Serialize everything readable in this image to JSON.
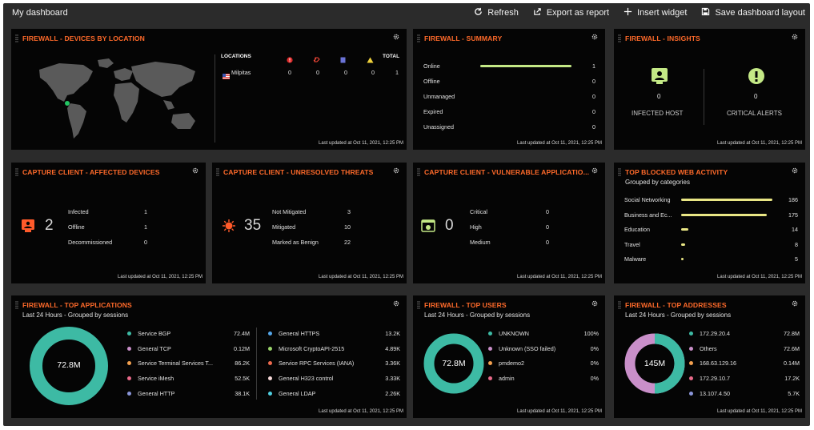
{
  "page": {
    "title": "My dashboard"
  },
  "toolbar": {
    "refresh": "Refresh",
    "export": "Export as report",
    "insert": "Insert widget",
    "save": "Save dashboard layout"
  },
  "updated": "Last updated at Oct 11, 2021, 12:25 PM",
  "widgets": {
    "devices_by_location": {
      "title": "FIREWALL - DEVICES BY LOCATION",
      "columns": [
        "LOCATIONS",
        "TOTAL"
      ],
      "rows": [
        {
          "location": "Milpitas",
          "v1": "0",
          "v2": "0",
          "v3": "0",
          "v4": "0",
          "total": "1"
        }
      ]
    },
    "summary": {
      "title": "FIREWALL - SUMMARY",
      "rows": [
        {
          "label": "Online",
          "value": "1",
          "fraction": 1
        },
        {
          "label": "Offline",
          "value": "0",
          "fraction": 0
        },
        {
          "label": "Unmanaged",
          "value": "0",
          "fraction": 0
        },
        {
          "label": "Expired",
          "value": "0",
          "fraction": 0
        },
        {
          "label": "Unassigned",
          "value": "0",
          "fraction": 0
        }
      ]
    },
    "insights": {
      "title": "FIREWALL - INSIGHTS",
      "infected_value": "0",
      "infected_label": "INFECTED HOST",
      "alerts_value": "0",
      "alerts_label": "CRITICAL ALERTS"
    },
    "affected_devices": {
      "title": "CAPTURE CLIENT - AFFECTED DEVICES",
      "big": "2",
      "rows": [
        {
          "label": "Infected",
          "value": "1"
        },
        {
          "label": "Offline",
          "value": "1"
        },
        {
          "label": "Decommissioned",
          "value": "0"
        }
      ]
    },
    "unresolved_threats": {
      "title": "CAPTURE CLIENT - UNRESOLVED THREATS",
      "big": "35",
      "rows": [
        {
          "label": "Not Mitigated",
          "value": "3"
        },
        {
          "label": "Mitigated",
          "value": "10"
        },
        {
          "label": "Marked as Benign",
          "value": "22"
        }
      ]
    },
    "vulnerable_apps": {
      "title": "CAPTURE CLIENT - VULNERABLE APPLICATIO...",
      "big": "0",
      "rows": [
        {
          "label": "Critical",
          "value": "0"
        },
        {
          "label": "High",
          "value": "0"
        },
        {
          "label": "Medium",
          "value": "0"
        }
      ]
    },
    "blocked_web": {
      "title": "TOP BLOCKED WEB ACTIVITY",
      "subtitle": "Grouped by categories",
      "rows": [
        {
          "label": "Social Networking",
          "value": "186",
          "n": 186
        },
        {
          "label": "Business and Ec...",
          "value": "175",
          "n": 175
        },
        {
          "label": "Education",
          "value": "14",
          "n": 14
        },
        {
          "label": "Travel",
          "value": "8",
          "n": 8
        },
        {
          "label": "Malware",
          "value": "5",
          "n": 5
        }
      ]
    },
    "top_apps": {
      "title": "FIREWALL - TOP APPLICATIONS",
      "subtitle": "Last 24 Hours - Grouped by sessions",
      "center": "72.8M",
      "left": [
        {
          "label": "Service BGP",
          "value": "72.4M",
          "color": "#3dbaa4"
        },
        {
          "label": "General TCP",
          "value": "0.12M",
          "color": "#c98fc9"
        },
        {
          "label": "Service Terminal Services T...",
          "value": "86.2K",
          "color": "#f3a04f"
        },
        {
          "label": "Service iMesh",
          "value": "52.5K",
          "color": "#ea6a8a"
        },
        {
          "label": "General HTTP",
          "value": "38.1K",
          "color": "#8a95d9"
        }
      ],
      "right": [
        {
          "label": "General HTTPS",
          "value": "13.2K",
          "color": "#54a6e8"
        },
        {
          "label": "Microsoft CryptoAPI-2515",
          "value": "4.89K",
          "color": "#9ad46b"
        },
        {
          "label": "Service RPC Services (IANA)",
          "value": "3.36K",
          "color": "#ee6a4e"
        },
        {
          "label": "General H323 control",
          "value": "3.33K",
          "color": "#f7d9d9"
        },
        {
          "label": "General LDAP",
          "value": "2.26K",
          "color": "#4fcfe0"
        }
      ]
    },
    "top_users": {
      "title": "FIREWALL - TOP USERS",
      "subtitle": "Last 24 Hours - Grouped by sessions",
      "center": "72.8M",
      "rows": [
        {
          "label": "UNKNOWN",
          "value": "100%",
          "color": "#3dbaa4"
        },
        {
          "label": "Unknown (SSO failed)",
          "value": "0%",
          "color": "#c98fc9"
        },
        {
          "label": "pmdemo2",
          "value": "0%",
          "color": "#f3a04f"
        },
        {
          "label": "admin",
          "value": "0%",
          "color": "#ea6a8a"
        }
      ]
    },
    "top_addresses": {
      "title": "FIREWALL - TOP ADDRESSES",
      "subtitle": "Last 24 Hours - Grouped by sessions",
      "center": "145M",
      "rows": [
        {
          "label": "172.29.20.4",
          "value": "72.8M",
          "color": "#3dbaa4"
        },
        {
          "label": "Others",
          "value": "72.6M",
          "color": "#c98fc9"
        },
        {
          "label": "168.63.129.16",
          "value": "0.14M",
          "color": "#f3a04f"
        },
        {
          "label": "172.29.10.7",
          "value": "17.2K",
          "color": "#ea6a8a"
        },
        {
          "label": "13.107.4.50",
          "value": "5.7K",
          "color": "#8a95d9"
        }
      ]
    }
  },
  "colors": {
    "accent": "#ff6a2a",
    "teal": "#3dbaa4",
    "pink": "#c98fc9",
    "bar": "#e9e685",
    "green_bar": "#c4e986"
  }
}
